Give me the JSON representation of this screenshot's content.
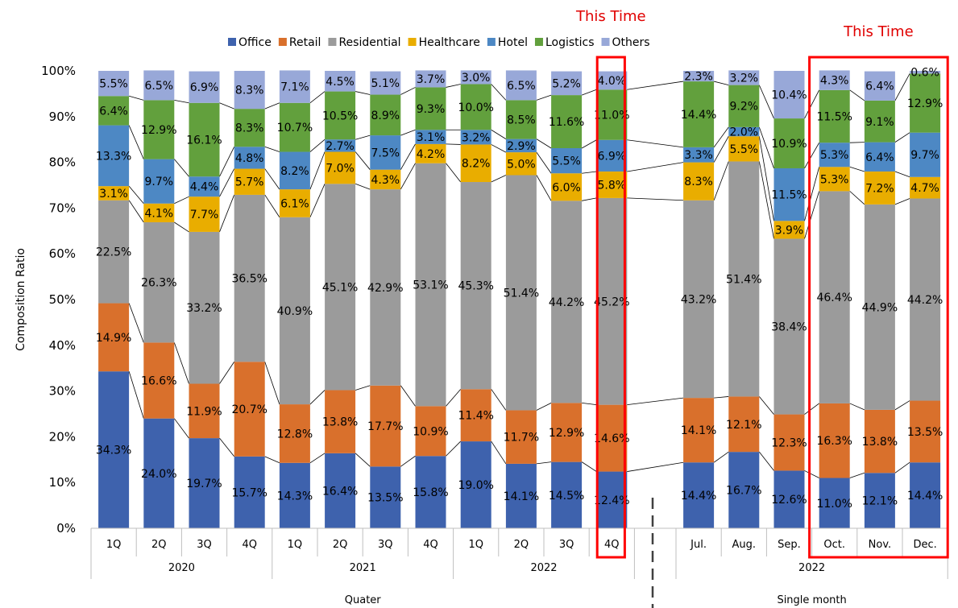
{
  "chart_data": {
    "type": "stacked-bar-100",
    "ylabel": "Composition Ratio",
    "ylim": [
      0,
      100
    ],
    "yticks": [
      "0%",
      "10%",
      "20%",
      "30%",
      "40%",
      "50%",
      "60%",
      "70%",
      "80%",
      "90%",
      "100%"
    ],
    "legend": {
      "placement": "top"
    },
    "colors": {
      "Office": "#3e62ad",
      "Retail": "#d9702c",
      "Residential": "#9b9b9b",
      "Healthcare": "#e9ad00",
      "Hotel": "#4d88c4",
      "Logistics": "#62a03d",
      "Others": "#98a8d8"
    },
    "categories": [
      "1Q",
      "2Q",
      "3Q",
      "4Q",
      "1Q",
      "2Q",
      "3Q",
      "4Q",
      "1Q",
      "2Q",
      "3Q",
      "4Q",
      "Jul.",
      "Aug.",
      "Sep.",
      "Oct.",
      "Nov.",
      "Dec."
    ],
    "groups": [
      {
        "label": "2020",
        "span": [
          0,
          3
        ]
      },
      {
        "label": "2021",
        "span": [
          4,
          7
        ]
      },
      {
        "label": "2022",
        "span": [
          8,
          11
        ]
      },
      {
        "label": "2022",
        "span": [
          12,
          17
        ]
      }
    ],
    "sections": [
      {
        "label": "Quater",
        "span": [
          0,
          11
        ]
      },
      {
        "label": "Single month",
        "span": [
          12,
          17
        ]
      }
    ],
    "series": [
      {
        "name": "Office",
        "values": [
          34.3,
          24.0,
          19.7,
          15.7,
          14.3,
          16.4,
          13.5,
          15.8,
          19.0,
          14.1,
          14.5,
          12.4,
          14.4,
          16.7,
          12.6,
          11.0,
          12.1,
          14.4
        ]
      },
      {
        "name": "Retail",
        "values": [
          14.9,
          16.6,
          11.9,
          20.7,
          12.8,
          13.8,
          17.7,
          10.9,
          11.4,
          11.7,
          12.9,
          14.6,
          14.1,
          12.1,
          12.3,
          16.3,
          13.8,
          13.5
        ]
      },
      {
        "name": "Residential",
        "values": [
          22.5,
          26.3,
          33.2,
          36.5,
          40.9,
          45.1,
          42.9,
          53.1,
          45.3,
          51.4,
          44.2,
          45.2,
          43.2,
          51.4,
          38.4,
          46.4,
          44.9,
          44.2
        ]
      },
      {
        "name": "Healthcare",
        "values": [
          3.1,
          4.1,
          7.7,
          5.7,
          6.1,
          7.0,
          4.3,
          4.2,
          8.2,
          5.0,
          6.0,
          5.8,
          8.3,
          5.5,
          3.9,
          5.3,
          7.2,
          4.7
        ]
      },
      {
        "name": "Hotel",
        "values": [
          13.3,
          9.7,
          4.4,
          4.8,
          8.2,
          2.7,
          7.5,
          3.1,
          3.2,
          2.9,
          5.5,
          6.9,
          3.3,
          2.0,
          11.5,
          5.3,
          6.4,
          9.7
        ]
      },
      {
        "name": "Logistics",
        "values": [
          6.4,
          12.9,
          16.1,
          8.3,
          10.7,
          10.5,
          8.9,
          9.3,
          10.0,
          8.5,
          11.6,
          11.0,
          14.4,
          9.2,
          10.9,
          11.5,
          9.1,
          12.9
        ]
      },
      {
        "name": "Others",
        "values": [
          5.5,
          6.5,
          6.9,
          8.3,
          7.1,
          4.5,
          5.1,
          3.7,
          3.0,
          6.5,
          5.2,
          4.0,
          2.3,
          3.2,
          10.4,
          4.3,
          6.4,
          0.6
        ]
      }
    ],
    "annotations": [
      {
        "text": "This Time",
        "highlight": [
          11,
          11
        ]
      },
      {
        "text": "This Time",
        "highlight": [
          15,
          17
        ]
      }
    ]
  }
}
